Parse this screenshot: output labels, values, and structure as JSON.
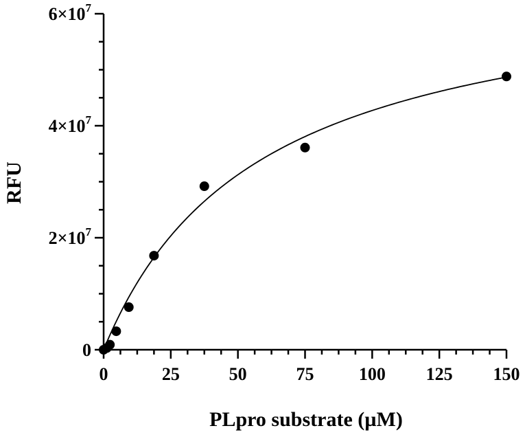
{
  "chart_data": {
    "type": "scatter",
    "title": "",
    "xlabel": "PLpro substrate (µM)",
    "ylabel": "RFU",
    "xlim": [
      0,
      150
    ],
    "ylim": [
      0,
      60000000
    ],
    "x_ticks": [
      0,
      25,
      50,
      75,
      100,
      125,
      150
    ],
    "x_tick_labels": [
      "0",
      "25",
      "50",
      "75",
      "100",
      "125",
      "150"
    ],
    "y_ticks": [
      0,
      20000000,
      40000000,
      60000000
    ],
    "y_tick_labels": [
      {
        "mantissa": "0",
        "exponent": ""
      },
      {
        "mantissa": "2×10",
        "exponent": "7"
      },
      {
        "mantissa": "4×10",
        "exponent": "7"
      },
      {
        "mantissa": "6×10",
        "exponent": "7"
      }
    ],
    "y_minor_per_major": 4,
    "x_minor_per_major": 4,
    "grid": false,
    "series": [
      {
        "points": [
          {
            "x": 0,
            "y": 0
          },
          {
            "x": 1.17,
            "y": 300000
          },
          {
            "x": 2.34,
            "y": 900000
          },
          {
            "x": 4.69,
            "y": 3300000
          },
          {
            "x": 9.38,
            "y": 7600000
          },
          {
            "x": 18.75,
            "y": 16800000
          },
          {
            "x": 37.5,
            "y": 29200000
          },
          {
            "x": 75,
            "y": 36100000
          },
          {
            "x": 150,
            "y": 48800000
          }
        ]
      }
    ],
    "fit": {
      "model": "Michaelis-Menten",
      "vmax": 67500000,
      "km": 58
    }
  }
}
